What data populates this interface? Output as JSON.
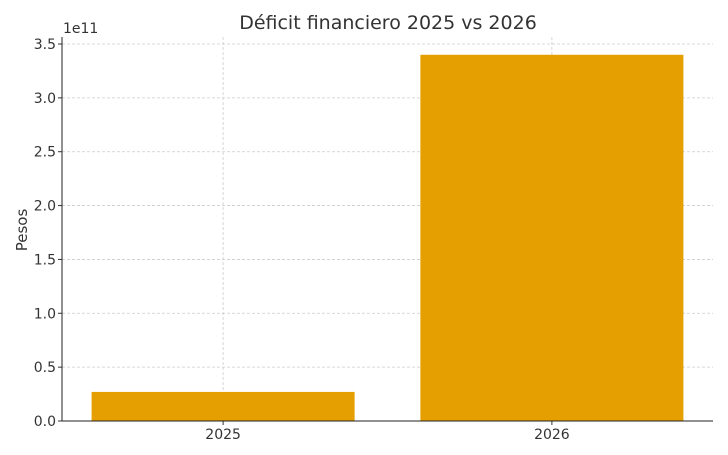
{
  "chart_data": {
    "type": "bar",
    "title": "Déficit financiero 2025 vs 2026",
    "xlabel": "",
    "ylabel": "Pesos",
    "offset_label": "1e11",
    "categories": [
      "2025",
      "2026"
    ],
    "values": [
      27000000000,
      340000000000
    ],
    "ylim": [
      0,
      356500000000
    ],
    "yticks": [
      0,
      0.5,
      1.0,
      1.5,
      2.0,
      2.5,
      3.0,
      3.5
    ],
    "ytick_labels": [
      "0.0",
      "0.5",
      "1.0",
      "1.5",
      "2.0",
      "2.5",
      "3.0",
      "3.5"
    ],
    "grid": true,
    "bar_color": "#E69F00"
  }
}
